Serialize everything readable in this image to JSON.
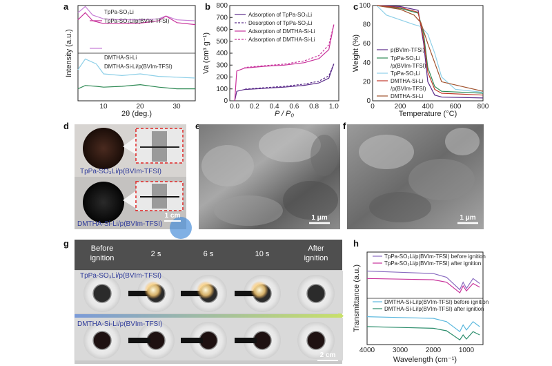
{
  "panels": {
    "a": {
      "label": "a",
      "xlabel": "2θ (deg.)",
      "ylabel": "Intensity (a.u.)",
      "xticks": [
        "10",
        "20",
        "30"
      ],
      "legend_top": [
        "TpPa-SO₃Li",
        "TpPa-SO₃Li/p(BVIm-TFSI)"
      ],
      "legend_bottom": [
        "DMTHA-Si-Li",
        "DMTHA-Si-Li/p(BVIm-TFSI)"
      ]
    },
    "b": {
      "label": "b",
      "xlabel": "P / P₀",
      "ylabel": "Va (cm³ g⁻¹)",
      "xticks": [
        "0.0",
        "0.2",
        "0.4",
        "0.6",
        "0.8",
        "1.0"
      ],
      "yticks": [
        "0",
        "100",
        "200",
        "300",
        "400",
        "500",
        "600",
        "700",
        "800"
      ],
      "legend": [
        "Adsorption of TpPa-SO₃Li",
        "Desorption of TpPa-SO₃Li",
        "Adsorption of DMTHA-Si-Li",
        "Adsorption of DMTHA-Si-Li"
      ]
    },
    "c": {
      "label": "c",
      "xlabel": "Temperature (°C)",
      "ylabel": "Weight (%)",
      "xticks": [
        "0",
        "200",
        "400",
        "600",
        "800"
      ],
      "yticks": [
        "0",
        "20",
        "40",
        "60",
        "80",
        "100"
      ],
      "legend": [
        "p(BVIm-TFSI)",
        "TpPa-SO₃Li",
        "/p(BVIm-TFSI)",
        "TpPa-SO₃Li",
        "DMTHA-Si-Li",
        "/p(BVIm-TFSI)",
        "DMTHA-Si-Li"
      ]
    },
    "d": {
      "label": "d",
      "caption_top": "TpPa-SO₃Li/p(BVIm-TFSI)",
      "caption_bottom": "DMTHA-Si-Li/p(BVIm-TFSI)",
      "scale": "1 cm"
    },
    "e": {
      "label": "e",
      "scale": "1 μm"
    },
    "f": {
      "label": "f",
      "scale": "1 μm"
    },
    "g": {
      "label": "g",
      "columns": [
        "Before\nignition",
        "2 s",
        "6 s",
        "10 s",
        "After\nignition"
      ],
      "row_top": "TpPa-SO₃Li/p(BVIm-TFSI)",
      "row_bottom": "DMTHA-Si-Li/p(BVIm-TFSI)",
      "scale": "2 cm"
    },
    "h": {
      "label": "h",
      "xlabel": "Wavelength (cm⁻¹)",
      "ylabel": "Transmittance (a.u.)",
      "xticks": [
        "4000",
        "3000",
        "2000",
        "1000"
      ],
      "legend_top": [
        "TpPa-SO₃Li/p(BVIm-TFSI) before ignition",
        "TpPa-SO₃Li/p(BVIm-TFSI) after ignition"
      ],
      "legend_bottom": [
        "DMTHA-Si-Li/p(BVIm-TFSI) before ignition",
        "DMTHA-Si-Li/p(BVIm-TFSI) after ignition"
      ]
    }
  },
  "colors": {
    "violet": "#c77fd6",
    "magenta": "#c8329b",
    "lightblue": "#8fd0e8",
    "green": "#2f8a55",
    "purple": "#5b2c8a",
    "pink": "#e0579a",
    "red": "#c0392b",
    "brown": "#a0522d",
    "teal": "#2aa198"
  },
  "chart_data": [
    {
      "type": "line",
      "title": "a",
      "xlabel": "2θ (deg.)",
      "ylabel": "Intensity (a.u.)",
      "xlim": [
        3,
        35
      ],
      "series": [
        {
          "name": "TpPa-SO₃Li",
          "x": [
            3,
            5,
            7,
            10,
            15,
            20,
            25,
            27,
            30,
            35
          ],
          "y": [
            0.85,
            0.98,
            0.8,
            0.72,
            0.7,
            0.7,
            0.72,
            0.78,
            0.7,
            0.68
          ]
        },
        {
          "name": "TpPa-SO₃Li/p(BVIm-TFSI)",
          "x": [
            3,
            5,
            7,
            10,
            15,
            20,
            25,
            27,
            30,
            35
          ],
          "y": [
            0.7,
            0.85,
            0.68,
            0.62,
            0.62,
            0.63,
            0.68,
            0.78,
            0.64,
            0.6
          ]
        },
        {
          "name": "DMTHA-Si-Li",
          "x": [
            3,
            5,
            8,
            10,
            15,
            20,
            25,
            30,
            35
          ],
          "y": [
            0.35,
            0.48,
            0.42,
            0.3,
            0.28,
            0.3,
            0.27,
            0.26,
            0.25
          ]
        },
        {
          "name": "DMTHA-Si-Li/p(BVIm-TFSI)",
          "x": [
            3,
            5,
            8,
            10,
            15,
            20,
            25,
            30,
            35
          ],
          "y": [
            0.12,
            0.16,
            0.15,
            0.14,
            0.15,
            0.17,
            0.14,
            0.12,
            0.12
          ]
        }
      ]
    },
    {
      "type": "line",
      "title": "b",
      "xlabel": "P / P₀",
      "ylabel": "Va (cm³ g⁻¹)",
      "xlim": [
        -0.05,
        1.05
      ],
      "ylim": [
        0,
        800
      ],
      "series": [
        {
          "name": "Adsorption of TpPa-SO₃Li",
          "x": [
            0,
            0.02,
            0.1,
            0.3,
            0.5,
            0.7,
            0.85,
            0.95,
            1.0
          ],
          "y": [
            0,
            80,
            95,
            105,
            115,
            130,
            150,
            190,
            310
          ]
        },
        {
          "name": "Desorption of TpPa-SO₃Li",
          "x": [
            1.0,
            0.95,
            0.85,
            0.7,
            0.5,
            0.3,
            0.1
          ],
          "y": [
            310,
            210,
            165,
            140,
            122,
            110,
            98
          ]
        },
        {
          "name": "Adsorption of DMTHA-Si-Li",
          "x": [
            0,
            0.02,
            0.1,
            0.3,
            0.5,
            0.7,
            0.85,
            0.95,
            1.0
          ],
          "y": [
            0,
            250,
            275,
            290,
            300,
            320,
            355,
            430,
            640
          ]
        },
        {
          "name": "Adsorption of DMTHA-Si-Li",
          "x": [
            1.0,
            0.95,
            0.85,
            0.7,
            0.5,
            0.3,
            0.1
          ],
          "y": [
            640,
            470,
            380,
            335,
            308,
            295,
            280
          ]
        }
      ]
    },
    {
      "type": "line",
      "title": "c",
      "xlabel": "Temperature (°C)",
      "ylabel": "Weight (%)",
      "xlim": [
        0,
        800
      ],
      "ylim": [
        0,
        100
      ],
      "series": [
        {
          "name": "p(BVIm-TFSI)",
          "x": [
            30,
            200,
            330,
            370,
            400,
            450,
            500,
            800
          ],
          "y": [
            100,
            99,
            95,
            60,
            20,
            6,
            4,
            3
          ]
        },
        {
          "name": "TpPa-SO₃Li /p(BVIm-TFSI)",
          "x": [
            30,
            200,
            330,
            370,
            400,
            450,
            500,
            800
          ],
          "y": [
            100,
            97,
            92,
            70,
            35,
            15,
            10,
            8
          ]
        },
        {
          "name": "TpPa-SO₃Li",
          "x": [
            30,
            100,
            200,
            300,
            350,
            400,
            450,
            500,
            600,
            800
          ],
          "y": [
            100,
            90,
            85,
            80,
            78,
            70,
            50,
            25,
            12,
            9
          ]
        },
        {
          "name": "DMTHA-Si-Li /p(BVIm-TFSI)",
          "x": [
            30,
            200,
            330,
            370,
            400,
            450,
            500,
            800
          ],
          "y": [
            100,
            98,
            93,
            65,
            30,
            12,
            8,
            6
          ]
        },
        {
          "name": "DMTHA-Si-Li",
          "x": [
            30,
            200,
            300,
            350,
            400,
            450,
            500,
            800
          ],
          "y": [
            100,
            96,
            90,
            82,
            60,
            40,
            20,
            10
          ]
        }
      ]
    },
    {
      "type": "line",
      "title": "h",
      "xlabel": "Wavelength (cm⁻¹)",
      "ylabel": "Transmittance (a.u.)",
      "xlim": [
        4000,
        500
      ],
      "series": [
        {
          "name": "TpPa-SO₃Li/p(BVIm-TFSI) before ignition",
          "x": [
            4000,
            3000,
            2000,
            1600,
            1200,
            1100,
            1000,
            800,
            600
          ],
          "y": [
            0.9,
            0.88,
            0.86,
            0.8,
            0.6,
            0.72,
            0.62,
            0.78,
            0.7
          ]
        },
        {
          "name": "TpPa-SO₃Li/p(BVIm-TFSI) after ignition",
          "x": [
            4000,
            3000,
            2000,
            1600,
            1200,
            1100,
            1000,
            800,
            600
          ],
          "y": [
            0.78,
            0.77,
            0.76,
            0.72,
            0.55,
            0.66,
            0.58,
            0.7,
            0.64
          ]
        },
        {
          "name": "DMTHA-Si-Li/p(BVIm-TFSI) before ignition",
          "x": [
            4000,
            3000,
            2000,
            1600,
            1200,
            1100,
            1000,
            800,
            600
          ],
          "y": [
            0.42,
            0.41,
            0.4,
            0.36,
            0.24,
            0.32,
            0.26,
            0.36,
            0.3
          ]
        },
        {
          "name": "DMTHA-Si-Li/p(BVIm-TFSI) after ignition",
          "x": [
            4000,
            3000,
            2000,
            1600,
            1200,
            1100,
            1000,
            800,
            600
          ],
          "y": [
            0.3,
            0.29,
            0.28,
            0.25,
            0.14,
            0.2,
            0.15,
            0.24,
            0.2
          ]
        }
      ]
    }
  ]
}
